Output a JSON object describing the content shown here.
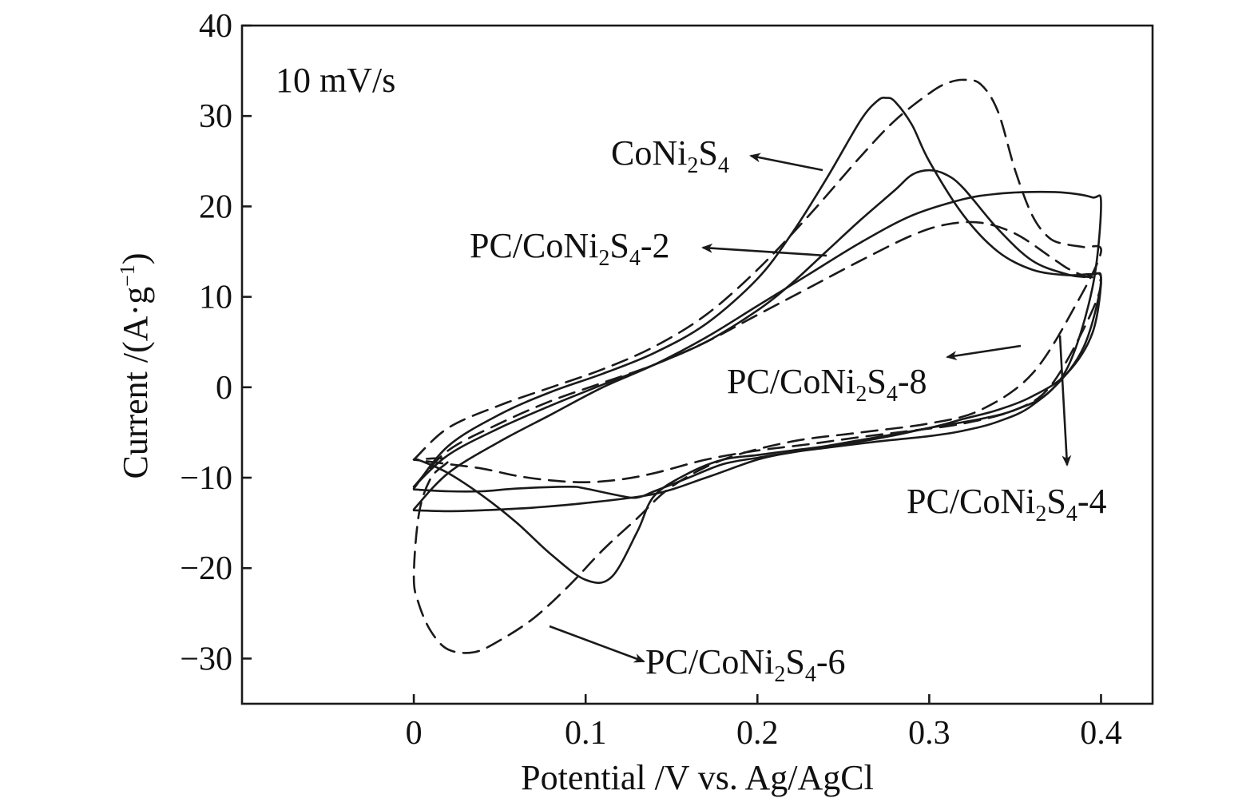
{
  "chart_data": {
    "type": "line",
    "xlabel": "Potential /V vs. Ag/AgCl",
    "ylabel": {
      "prefix": "Current /(A·g",
      "sup": "−1",
      "suffix": ")"
    },
    "xlim": [
      -0.1,
      0.43
    ],
    "ylim": [
      -35,
      40
    ],
    "xticks": [
      0,
      0.1,
      0.2,
      0.3,
      0.4
    ],
    "xtick_labels": [
      "0",
      "0.1",
      "0.2",
      "0.3",
      "0.4"
    ],
    "yticks": [
      -30,
      -20,
      -10,
      0,
      10,
      20,
      30,
      40
    ],
    "ytick_labels": [
      "−30",
      "−20",
      "−10",
      "0",
      "10",
      "20",
      "30",
      "40"
    ],
    "grid": false,
    "annotation_scan_rate": "10 mV/s",
    "series": [
      {
        "name": "CoNi2S4",
        "style": "solid",
        "x": [
          0.0,
          0.02,
          0.05,
          0.08,
          0.11,
          0.14,
          0.17,
          0.2,
          0.22,
          0.24,
          0.26,
          0.27,
          0.275,
          0.28,
          0.29,
          0.3,
          0.32,
          0.34,
          0.36,
          0.38,
          0.395,
          0.4,
          0.395,
          0.38,
          0.36,
          0.34,
          0.32,
          0.3,
          0.27,
          0.24,
          0.22,
          0.2,
          0.18,
          0.16,
          0.14,
          0.13,
          0.115,
          0.1,
          0.08,
          0.06,
          0.04,
          0.02,
          0.005,
          0.0
        ],
        "y": [
          -11.2,
          -6.5,
          -3.0,
          -0.5,
          1.5,
          3.8,
          7.0,
          12.0,
          17.0,
          23.0,
          29.5,
          31.7,
          32.0,
          31.6,
          29.0,
          25.0,
          19.0,
          15.0,
          13.0,
          12.4,
          12.5,
          12.0,
          6.0,
          1.5,
          -1.0,
          -2.5,
          -3.5,
          -4.5,
          -5.5,
          -6.5,
          -7.0,
          -7.5,
          -8.0,
          -9.5,
          -12.0,
          -16.0,
          -21.0,
          -21.3,
          -18.5,
          -15.0,
          -12.0,
          -9.5,
          -8.2,
          -8.0
        ]
      },
      {
        "name": "PC/CoNi2S4-2",
        "style": "solid",
        "x": [
          0.0,
          0.02,
          0.05,
          0.08,
          0.11,
          0.14,
          0.17,
          0.2,
          0.22,
          0.24,
          0.26,
          0.28,
          0.29,
          0.3,
          0.31,
          0.32,
          0.34,
          0.36,
          0.38,
          0.39,
          0.4,
          0.39,
          0.37,
          0.35,
          0.33,
          0.3,
          0.28,
          0.26,
          0.24,
          0.22,
          0.2,
          0.18,
          0.16,
          0.14,
          0.13,
          0.12,
          0.1,
          0.09,
          0.06,
          0.04,
          0.02,
          0.0
        ],
        "y": [
          -11.0,
          -7.5,
          -4.5,
          -2.0,
          0.3,
          2.5,
          5.0,
          8.5,
          11.5,
          15.0,
          18.5,
          21.8,
          23.5,
          24.0,
          23.5,
          22.0,
          17.5,
          14.0,
          12.5,
          12.2,
          12.0,
          4.5,
          -0.5,
          -2.5,
          -3.5,
          -4.5,
          -5.3,
          -6.0,
          -6.6,
          -7.2,
          -7.8,
          -8.5,
          -10.0,
          -11.5,
          -12.2,
          -12.0,
          -11.2,
          -11.0,
          -11.2,
          -11.5,
          -11.5,
          -11.3
        ]
      },
      {
        "name": "PC/CoNi2S4-4",
        "style": "solid",
        "x": [
          0.0,
          0.02,
          0.05,
          0.08,
          0.11,
          0.14,
          0.17,
          0.2,
          0.23,
          0.26,
          0.29,
          0.32,
          0.34,
          0.36,
          0.38,
          0.395,
          0.4,
          0.395,
          0.38,
          0.36,
          0.34,
          0.32,
          0.3,
          0.27,
          0.24,
          0.22,
          0.2,
          0.17,
          0.14,
          0.1,
          0.07,
          0.04,
          0.02,
          0.0
        ],
        "y": [
          -13.5,
          -9.5,
          -6.0,
          -3.0,
          0.0,
          2.5,
          5.5,
          9.0,
          12.5,
          16.0,
          19.0,
          20.8,
          21.4,
          21.6,
          21.5,
          21.0,
          20.3,
          11.0,
          2.0,
          -2.0,
          -3.8,
          -4.8,
          -5.4,
          -6.0,
          -6.7,
          -7.2,
          -8.0,
          -10.0,
          -11.8,
          -12.8,
          -13.3,
          -13.6,
          -13.7,
          -13.6
        ]
      },
      {
        "name": "PC/CoNi2S4-6",
        "style": "dashed",
        "x": [
          0.0,
          0.02,
          0.05,
          0.08,
          0.11,
          0.14,
          0.17,
          0.2,
          0.23,
          0.26,
          0.28,
          0.3,
          0.31,
          0.32,
          0.33,
          0.34,
          0.35,
          0.36,
          0.37,
          0.38,
          0.39,
          0.4,
          0.385,
          0.36,
          0.33,
          0.3,
          0.26,
          0.22,
          0.18,
          0.15,
          0.13,
          0.11,
          0.09,
          0.07,
          0.05,
          0.035,
          0.02,
          0.01,
          0.003,
          0.0,
          0.003,
          0.01,
          0.02,
          0.0
        ],
        "y": [
          -8.0,
          -4.5,
          -2.0,
          0.0,
          2.0,
          4.5,
          8.0,
          13.0,
          19.0,
          25.5,
          29.5,
          32.5,
          33.6,
          34.0,
          33.5,
          30.5,
          24.0,
          19.0,
          16.5,
          15.8,
          15.5,
          15.0,
          9.0,
          1.5,
          -2.5,
          -4.0,
          -5.0,
          -6.0,
          -8.0,
          -11.0,
          -14.5,
          -18.0,
          -22.0,
          -25.5,
          -28.0,
          -29.3,
          -29.0,
          -27.0,
          -24.0,
          -21.0,
          -14.0,
          -10.0,
          -8.0,
          -8.0
        ]
      },
      {
        "name": "PC/CoNi2S4-8",
        "style": "dashed",
        "x": [
          0.0,
          0.02,
          0.05,
          0.08,
          0.11,
          0.14,
          0.17,
          0.2,
          0.23,
          0.26,
          0.29,
          0.31,
          0.33,
          0.35,
          0.37,
          0.38,
          0.39,
          0.4,
          0.39,
          0.37,
          0.35,
          0.32,
          0.29,
          0.26,
          0.23,
          0.2,
          0.17,
          0.14,
          0.12,
          0.1,
          0.08,
          0.06,
          0.04,
          0.02,
          0.0
        ],
        "y": [
          -11.0,
          -7.0,
          -4.0,
          -1.5,
          0.5,
          2.5,
          5.0,
          8.0,
          11.0,
          14.0,
          16.8,
          18.0,
          18.2,
          17.0,
          14.5,
          13.2,
          12.3,
          11.5,
          6.5,
          0.0,
          -2.5,
          -4.0,
          -4.8,
          -5.5,
          -6.3,
          -7.0,
          -8.0,
          -9.5,
          -10.2,
          -10.5,
          -10.3,
          -9.8,
          -9.0,
          -8.5,
          -8.0
        ]
      }
    ],
    "labels": [
      {
        "base": "CoNi",
        "sub1": "2",
        "mid": "S",
        "sub2": "4",
        "end": "",
        "series": "CoNi2S4"
      },
      {
        "base": "PC/CoNi",
        "sub1": "2",
        "mid": "S",
        "sub2": "4",
        "end": "-2",
        "series": "PC/CoNi2S4-2"
      },
      {
        "base": "PC/CoNi",
        "sub1": "2",
        "mid": "S",
        "sub2": "4",
        "end": "-8",
        "series": "PC/CoNi2S4-8"
      },
      {
        "base": "PC/CoNi",
        "sub1": "2",
        "mid": "S",
        "sub2": "4",
        "end": "-4",
        "series": "PC/CoNi2S4-4"
      },
      {
        "base": "PC/CoNi",
        "sub1": "2",
        "mid": "S",
        "sub2": "4",
        "end": "-6",
        "series": "PC/CoNi2S4-6"
      }
    ]
  }
}
